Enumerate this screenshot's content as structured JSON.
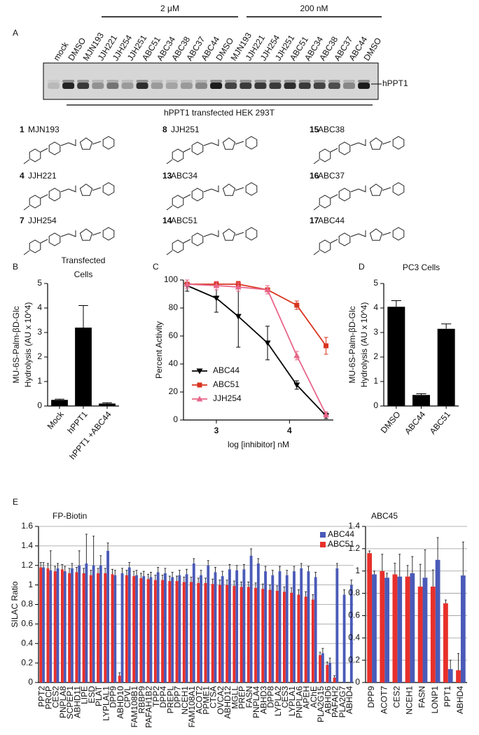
{
  "panel_labels": [
    "A",
    "B",
    "C",
    "D",
    "E"
  ],
  "gel": {
    "groups": [
      "2 μM",
      "200 nM"
    ],
    "lanes": [
      "mock",
      "DMSO",
      "MJN193",
      "JJH221",
      "JJH254",
      "JJH251",
      "ABC51",
      "ABC34",
      "ABC38",
      "ABC37",
      "ABC44",
      "DMSO",
      "MJN193",
      "JJH221",
      "JJH254",
      "JJH251",
      "ABC51",
      "ABC34",
      "ABC38",
      "ABC37",
      "ABC44",
      "DMSO"
    ],
    "band_label": "hPPT1",
    "caption": "hPPT1 transfected HEK 293T"
  },
  "structures": [
    {
      "number": "1",
      "name": "MJN193"
    },
    {
      "number": "8",
      "name": "JJH251"
    },
    {
      "number": "15",
      "name": "ABC38"
    },
    {
      "number": "4",
      "name": "JJH221"
    },
    {
      "number": "13",
      "name": "ABC34"
    },
    {
      "number": "16",
      "name": "ABC37"
    },
    {
      "number": "7",
      "name": "JJH254"
    },
    {
      "number": "14",
      "name": "ABC51"
    },
    {
      "number": "17",
      "name": "ABC44"
    }
  ],
  "chart_data": [
    {
      "type": "bar",
      "title": [
        "Transfected",
        "Cells"
      ],
      "ylabel": [
        "MU-6S-Palm-βD-Glc",
        "Hydrolysis (AU x 10^4)"
      ],
      "categories": [
        "Mock",
        "hPPT1",
        "hPPT1 +ABC44"
      ],
      "values": [
        0.25,
        3.2,
        0.1
      ],
      "errors": [
        0.03,
        0.9,
        0.03
      ],
      "color": "#000000",
      "ylim": [
        0,
        5
      ],
      "yticks": [
        0,
        1,
        2,
        3,
        4,
        5
      ]
    },
    {
      "type": "line",
      "xlabel": "log [inhibitor] nM",
      "ylabel": "Percent Activity",
      "x": [
        2.6,
        3.0,
        3.3,
        3.7,
        4.1,
        4.5
      ],
      "series": [
        {
          "name": "ABC44",
          "color": "#000000",
          "marker": "triangle-down",
          "values": [
            96,
            87,
            74,
            55,
            25,
            3
          ],
          "errors": [
            4,
            10,
            22,
            12,
            3,
            2
          ]
        },
        {
          "name": "ABC51",
          "color": "#d9341f",
          "marker": "square",
          "values": [
            97,
            97,
            97,
            93,
            82,
            53
          ],
          "errors": [
            3,
            2,
            2,
            3,
            3,
            6
          ]
        },
        {
          "name": "JJH254",
          "color": "#e8668a",
          "marker": "triangle-up",
          "values": [
            97,
            96,
            95,
            93,
            46,
            4
          ],
          "errors": [
            3,
            3,
            3,
            3,
            3,
            2
          ]
        }
      ],
      "xlim": [
        2.55,
        4.6
      ],
      "xticks": [
        3,
        4
      ],
      "ylim": [
        0,
        100
      ],
      "yticks": [
        0,
        20,
        40,
        60,
        80,
        100
      ]
    },
    {
      "type": "bar",
      "title": [
        "PC3 Cells"
      ],
      "ylabel": [
        "MU-6S-Palm-βD-Glc",
        "Hydrolysis (AU x 10^4)"
      ],
      "categories": [
        "DMSO",
        "ABC44",
        "ABC51"
      ],
      "values": [
        4.05,
        0.45,
        3.15
      ],
      "errors": [
        0.25,
        0.05,
        0.2
      ],
      "color": "#000000",
      "ylim": [
        0,
        5
      ],
      "yticks": [
        0,
        1,
        2,
        3,
        4,
        5
      ]
    },
    {
      "type": "grouped-bar",
      "title": "FP-Biotin",
      "ylabel": "SILAC Ratio",
      "grid": true,
      "legend": "top-right",
      "categories": [
        "PPT2",
        "PRCP",
        "CES2",
        "PNPLA8",
        "SCPEP1",
        "ABHD11",
        "LIPE",
        "ESD",
        "PLAT",
        "LYPLAL1",
        "DPP9",
        "ABHD10",
        "CPVL",
        "FAM108B1",
        "RBBP9",
        "PAFAH1B2",
        "TPP2",
        "DPP4",
        "PREPL",
        "DPP7",
        "NCEH1",
        "FAM108A1",
        "ACOT2",
        "PPME1",
        "CTSA",
        "OVCA2",
        "ABHD12",
        "MGLL",
        "PREP",
        "FASN",
        "PNPLA4",
        "ABHD3",
        "DPP8",
        "LYPLA2",
        "CES3",
        "LYPLA1",
        "PNPLA6",
        "APEH",
        "AChE",
        "PLA2G15",
        "ABHD6",
        "PAFAH2",
        "PLA2G7",
        "ABHD4"
      ],
      "series": [
        {
          "name": "ABC44",
          "color": "#4a5ab8",
          "values": [
            1.18,
            1.15,
            1.17,
            1.14,
            1.17,
            1.2,
            1.22,
            1.2,
            1.2,
            1.35,
            1.1,
            1.12,
            1.18,
            1.1,
            1.09,
            1.08,
            1.13,
            1.12,
            1.08,
            1.1,
            1.11,
            1.22,
            1.1,
            1.2,
            1.13,
            1.09,
            1.16,
            1.15,
            1.16,
            1.3,
            1.22,
            1.14,
            1.1,
            1.14,
            1.1,
            1.14,
            1.17,
            1.14,
            1.08,
            0.3,
            0.2,
            1.17,
            0.9,
            1.0
          ],
          "errors": [
            0.05,
            0.2,
            0.05,
            0.05,
            0.05,
            0.15,
            0.3,
            0.3,
            0.1,
            0.08,
            0.05,
            0.05,
            0.05,
            0.05,
            0.05,
            0.05,
            0.05,
            0.05,
            0.05,
            0.05,
            0.05,
            0.05,
            0.05,
            0.05,
            0.05,
            0.05,
            0.05,
            0.05,
            0.05,
            0.07,
            0.05,
            0.05,
            0.05,
            0.05,
            0.05,
            0.05,
            0.05,
            0.05,
            0.05,
            0.05,
            0.05,
            0.05,
            0.05,
            0.05
          ]
        },
        {
          "name": "ABC51",
          "color": "#e8302b",
          "values": [
            1.18,
            1.17,
            1.14,
            1.16,
            1.12,
            1.13,
            1.12,
            1.1,
            1.12,
            1.12,
            1.11,
            0.07,
            1.1,
            1.09,
            1.07,
            1.06,
            1.05,
            1.05,
            1.04,
            1.04,
            1.03,
            1.03,
            1.02,
            1.02,
            1.01,
            1.0,
            1.0,
            0.99,
            0.98,
            0.98,
            0.97,
            0.96,
            0.95,
            0.94,
            0.93,
            0.92,
            0.9,
            0.88,
            0.85,
            0.28,
            0.18,
            0.05,
            null,
            null
          ],
          "errors": [
            0.05,
            0.05,
            0.05,
            0.05,
            0.05,
            0.05,
            0.05,
            0.05,
            0.05,
            0.05,
            0.05,
            0.03,
            0.05,
            0.05,
            0.05,
            0.05,
            0.05,
            0.05,
            0.05,
            0.05,
            0.05,
            0.05,
            0.05,
            0.05,
            0.05,
            0.05,
            0.05,
            0.05,
            0.05,
            0.05,
            0.05,
            0.05,
            0.05,
            0.05,
            0.05,
            0.05,
            0.05,
            0.05,
            0.05,
            0.03,
            0.03,
            0.02,
            null,
            null
          ]
        }
      ],
      "ylim": [
        0,
        1.6
      ],
      "yticks": [
        0,
        0.2,
        0.4,
        0.6,
        0.8,
        1,
        1.2,
        1.4,
        1.6
      ]
    },
    {
      "type": "grouped-bar",
      "title": "ABC45",
      "grid": true,
      "categories": [
        "DPP9",
        "ACOT7",
        "CES2",
        "NCEH1",
        "FASN",
        "LONP1",
        "PPT1",
        "ABHD4"
      ],
      "series": [
        {
          "name": "ABC44",
          "color": "#4a5ab8",
          "values": [
            0.97,
            0.94,
            0.95,
            0.98,
            0.94,
            1.1,
            0.12,
            0.96
          ],
          "errors": [
            0.03,
            0.04,
            0.2,
            0.15,
            0.25,
            0.2,
            0.08,
            0.3
          ]
        },
        {
          "name": "ABC51",
          "color": "#e8302b",
          "values": [
            1.16,
            1.0,
            0.97,
            0.95,
            0.86,
            0.86,
            0.71,
            0.11
          ],
          "errors": [
            0.02,
            0.15,
            0.1,
            0.1,
            0.2,
            0.15,
            0.03,
            0.15
          ]
        }
      ],
      "ylim": [
        0,
        1.4
      ],
      "yticks": [
        0,
        0.2,
        0.4,
        0.6,
        0.8,
        1,
        1.2,
        1.4
      ]
    }
  ]
}
